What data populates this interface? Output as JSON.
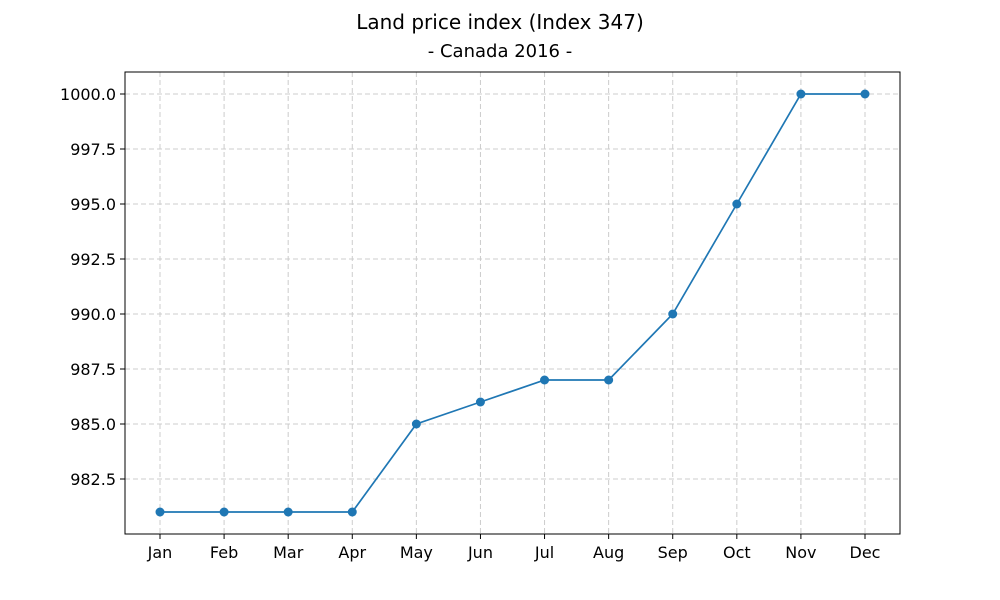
{
  "chart_data": {
    "type": "line",
    "title": "Land price index (Index 347)",
    "subtitle": "- Canada 2016 -",
    "xlabel": "",
    "ylabel": "",
    "categories": [
      "Jan",
      "Feb",
      "Mar",
      "Apr",
      "May",
      "Jun",
      "Jul",
      "Aug",
      "Sep",
      "Oct",
      "Nov",
      "Dec"
    ],
    "series": [
      {
        "values": [
          981,
          981,
          981,
          981,
          985,
          986,
          987,
          987,
          990,
          995,
          1000,
          1000
        ]
      }
    ],
    "ylim": [
      980.0,
      1001.0
    ],
    "yticks": [
      "982.5",
      "985.0",
      "987.5",
      "990.0",
      "992.5",
      "995.0",
      "997.5",
      "1000.0"
    ],
    "grid": true,
    "legend": "none",
    "colors": {
      "line": "#1f77b4",
      "grid": "#cccccc"
    }
  }
}
